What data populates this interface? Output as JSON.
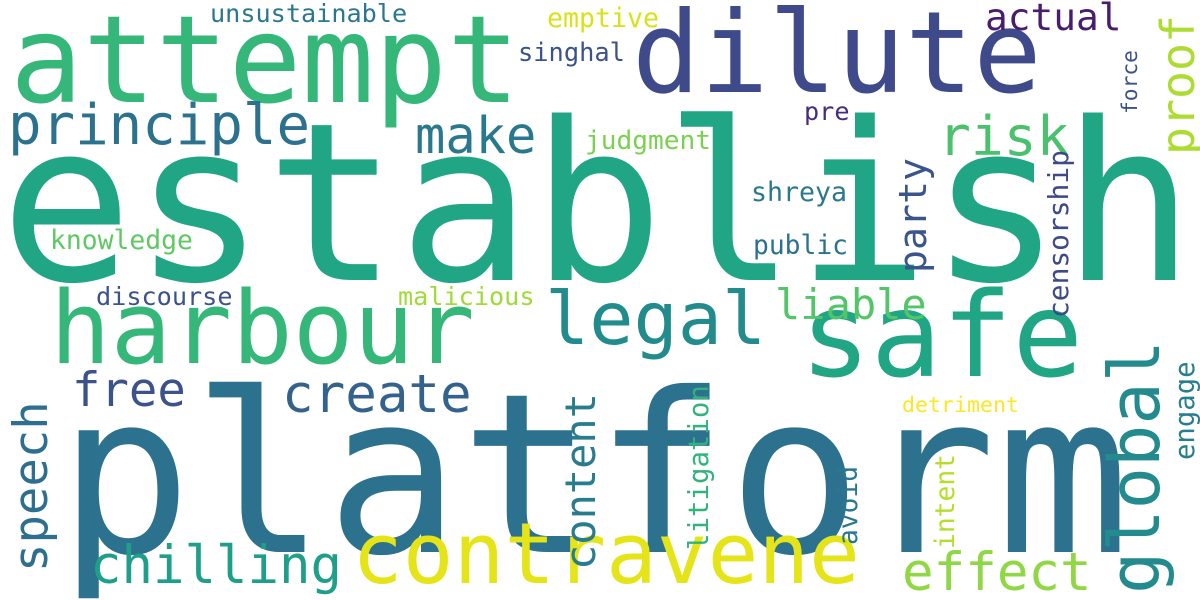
{
  "background": "#ffffff",
  "words": [
    {
      "text": "establish",
      "color": "#21a685",
      "orientation": "horizontal"
    },
    {
      "text": "platform",
      "color": "#2c718e",
      "orientation": "horizontal"
    },
    {
      "text": "dilute",
      "color": "#3e4a89",
      "orientation": "horizontal"
    },
    {
      "text": "attempt",
      "color": "#35b779",
      "orientation": "horizontal"
    },
    {
      "text": "safe",
      "color": "#21a685",
      "orientation": "horizontal"
    },
    {
      "text": "harbour",
      "color": "#35b779",
      "orientation": "horizontal"
    },
    {
      "text": "contravene",
      "color": "#e5e419",
      "orientation": "horizontal"
    },
    {
      "text": "global",
      "color": "#238a8d",
      "orientation": "vertical"
    },
    {
      "text": "legal",
      "color": "#228c8d",
      "orientation": "horizontal"
    },
    {
      "text": "principle",
      "color": "#2c728e",
      "orientation": "horizontal"
    },
    {
      "text": "create",
      "color": "#33638d",
      "orientation": "horizontal"
    },
    {
      "text": "chilling",
      "color": "#1f9e89",
      "orientation": "horizontal"
    },
    {
      "text": "effect",
      "color": "#8fd744",
      "orientation": "horizontal"
    },
    {
      "text": "speech",
      "color": "#2e6e8e",
      "orientation": "vertical"
    },
    {
      "text": "content",
      "color": "#297b8e",
      "orientation": "vertical"
    },
    {
      "text": "risk",
      "color": "#4ac16d",
      "orientation": "horizontal"
    },
    {
      "text": "make",
      "color": "#2a788e",
      "orientation": "horizontal"
    },
    {
      "text": "party",
      "color": "#3a548c",
      "orientation": "vertical"
    },
    {
      "text": "proof",
      "color": "#addc30",
      "orientation": "vertical"
    },
    {
      "text": "actual",
      "color": "#481c6e",
      "orientation": "horizontal"
    },
    {
      "text": "free",
      "color": "#3b528b",
      "orientation": "horizontal"
    },
    {
      "text": "liable",
      "color": "#52c569",
      "orientation": "horizontal"
    },
    {
      "text": "unsustainable",
      "color": "#2a788e",
      "orientation": "horizontal"
    },
    {
      "text": "emptive",
      "color": "#d8e219",
      "orientation": "horizontal"
    },
    {
      "text": "singhal",
      "color": "#3b528b",
      "orientation": "horizontal"
    },
    {
      "text": "force",
      "color": "#3b528b",
      "orientation": "vertical"
    },
    {
      "text": "pre",
      "color": "#472d7b",
      "orientation": "horizontal"
    },
    {
      "text": "judgment",
      "color": "#7ad151",
      "orientation": "horizontal"
    },
    {
      "text": "shreya",
      "color": "#2a788e",
      "orientation": "horizontal"
    },
    {
      "text": "censorship",
      "color": "#3e4989",
      "orientation": "vertical"
    },
    {
      "text": "public",
      "color": "#2c718e",
      "orientation": "horizontal"
    },
    {
      "text": "knowledge",
      "color": "#5ec962",
      "orientation": "horizontal"
    },
    {
      "text": "discourse",
      "color": "#3b528b",
      "orientation": "horizontal"
    },
    {
      "text": "malicious",
      "color": "#a0da39",
      "orientation": "horizontal"
    },
    {
      "text": "engage",
      "color": "#277f8e",
      "orientation": "vertical"
    },
    {
      "text": "detriment",
      "color": "#fde725",
      "orientation": "horizontal"
    },
    {
      "text": "litigation",
      "color": "#2fb47c",
      "orientation": "vertical"
    },
    {
      "text": "avoid",
      "color": "#2a788e",
      "orientation": "vertical"
    },
    {
      "text": "intent",
      "color": "#b5de2b",
      "orientation": "vertical"
    }
  ]
}
